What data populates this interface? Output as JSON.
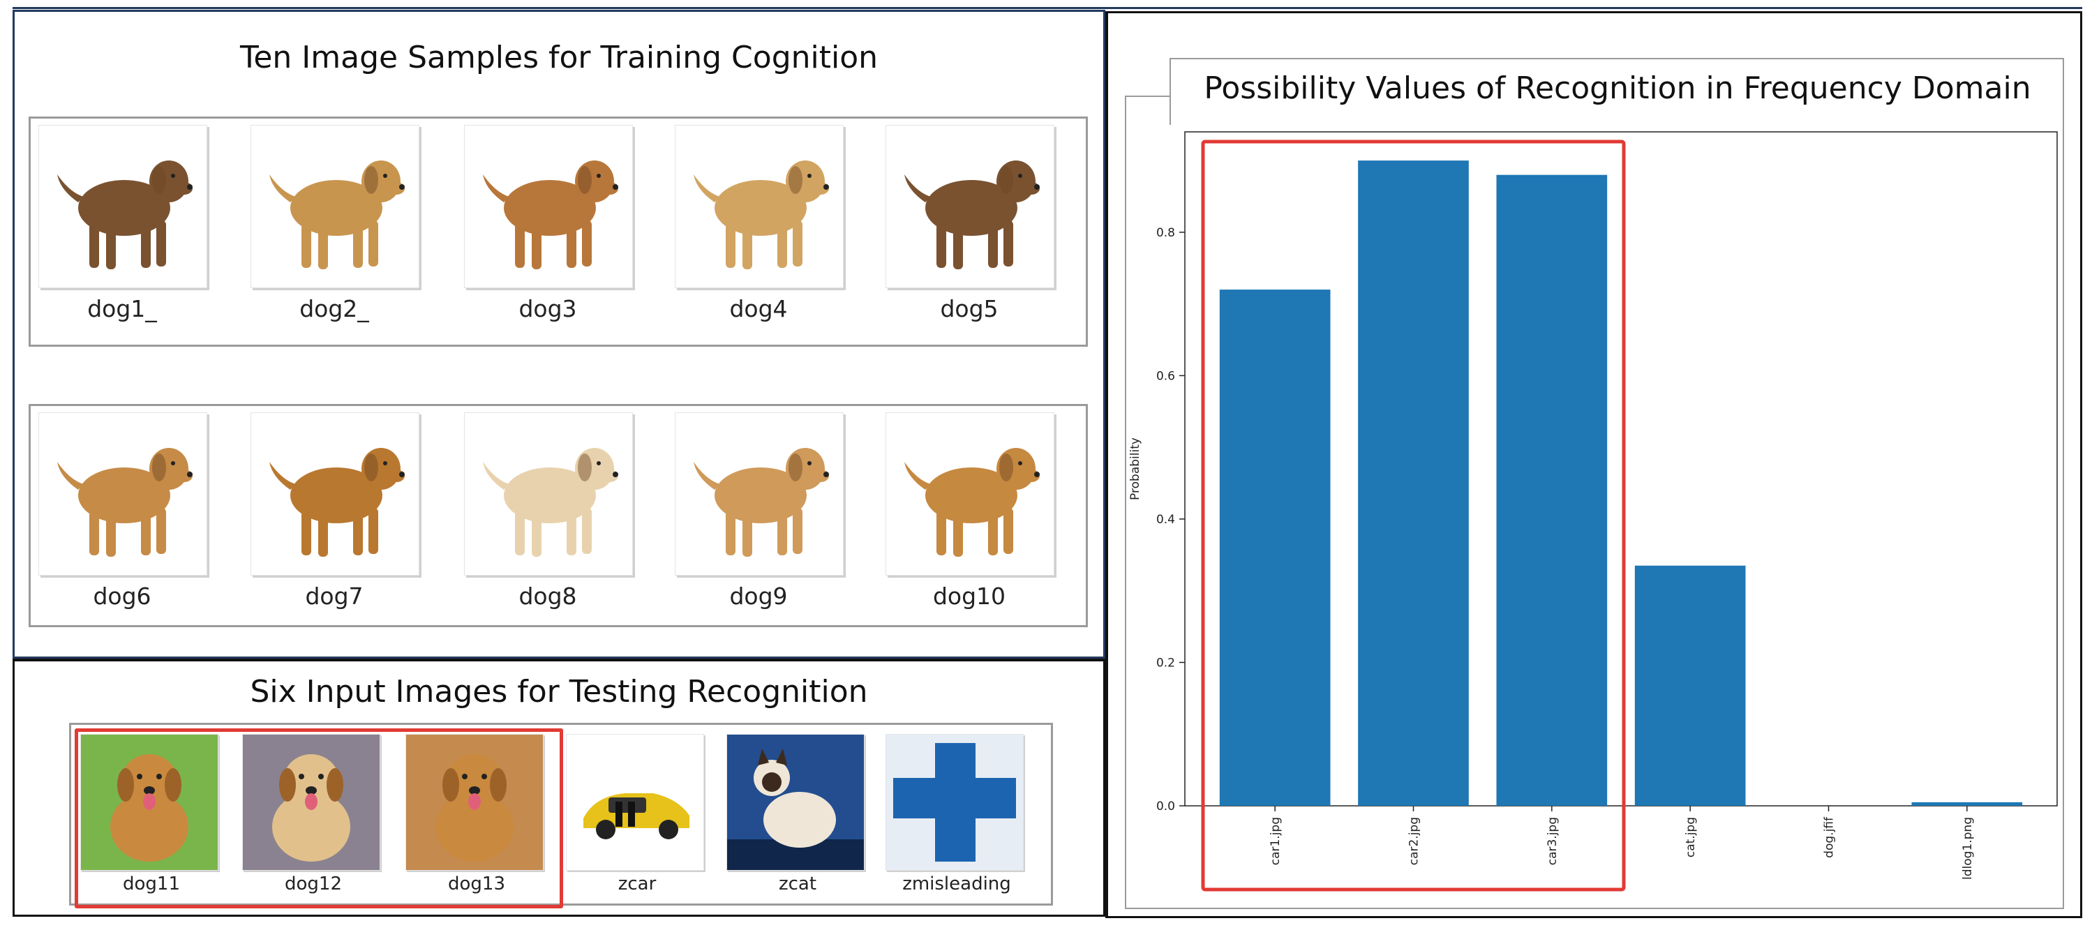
{
  "training": {
    "title": "Ten Image Samples for Training Cognition",
    "images": [
      {
        "label": "dog1_",
        "icon": "golden-retriever-dark-photo"
      },
      {
        "label": "dog2_",
        "icon": "golden-retriever-photo"
      },
      {
        "label": "dog3",
        "icon": "golden-retriever-photo"
      },
      {
        "label": "dog4",
        "icon": "golden-retriever-photo"
      },
      {
        "label": "dog5",
        "icon": "golden-retriever-dark-photo"
      },
      {
        "label": "dog6",
        "icon": "golden-retriever-photo"
      },
      {
        "label": "dog7",
        "icon": "golden-retriever-photo"
      },
      {
        "label": "dog8",
        "icon": "golden-retriever-light-photo"
      },
      {
        "label": "dog9",
        "icon": "golden-retriever-photo"
      },
      {
        "label": "dog10",
        "icon": "golden-retriever-photo"
      }
    ]
  },
  "testing": {
    "title": "Six Input Images for Testing Recognition",
    "images": [
      {
        "label": "dog11",
        "icon": "golden-retriever-on-grass-photo"
      },
      {
        "label": "dog12",
        "icon": "golden-retriever-sitting-photo"
      },
      {
        "label": "dog13",
        "icon": "golden-retriever-portrait-photo"
      },
      {
        "label": "zcar",
        "icon": "yellow-sports-car-photo"
      },
      {
        "label": "zcat",
        "icon": "siamese-cat-photo"
      },
      {
        "label": "zmisleading",
        "icon": "blue-cross-sign-photo"
      }
    ]
  },
  "colors": {
    "bar": "#1f77b4",
    "highlight": "#e23a34",
    "panel_border": "#233a5e"
  },
  "chart_data": {
    "type": "bar",
    "title": "Possibility Values of Recognition in Frequency Domain",
    "ylabel": "Probability",
    "xlabel": "",
    "categories": [
      "car1.jpg",
      "car2.jpg",
      "car3.jpg",
      "cat.jpg",
      "dog.jfif",
      "ldlog1.png"
    ],
    "values": [
      0.72,
      0.9,
      0.88,
      0.335,
      0.0,
      0.005
    ],
    "ylim": [
      0,
      0.94
    ],
    "yticks": [
      0.0,
      0.2,
      0.4,
      0.6,
      0.8
    ],
    "ytick_labels": [
      "0.0",
      "0.2",
      "0.4",
      "0.6",
      "0.8"
    ],
    "highlighted_categories": [
      "car1.jpg",
      "car2.jpg",
      "car3.jpg"
    ],
    "grid": false,
    "legend": "none"
  }
}
